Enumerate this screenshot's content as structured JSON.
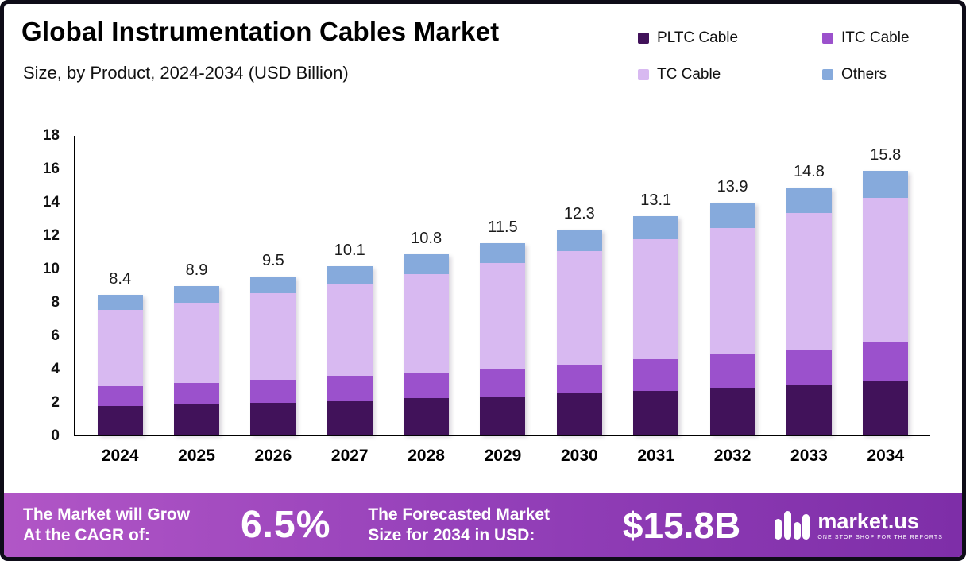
{
  "header": {
    "title": "Global Instrumentation Cables Market",
    "subtitle": "Size, by Product, 2024-2034 (USD Billion)"
  },
  "legend": [
    {
      "label": "PLTC Cable",
      "color": "#41125a"
    },
    {
      "label": "ITC Cable",
      "color": "#9b51cc"
    },
    {
      "label": "TC Cable",
      "color": "#d8b9f1"
    },
    {
      "label": "Others",
      "color": "#86aadc"
    }
  ],
  "chart_data": {
    "type": "bar",
    "stacked": true,
    "title": "Global Instrumentation Cables Market Size, by Product, 2024-2034 (USD Billion)",
    "unit": "USD Billion",
    "xlabel": "",
    "ylabel": "",
    "ylim": [
      0,
      18
    ],
    "yticks": [
      0,
      2,
      4,
      6,
      8,
      10,
      12,
      14,
      16,
      18
    ],
    "grid": false,
    "legend_position": "top-right",
    "categories": [
      "2024",
      "2025",
      "2026",
      "2027",
      "2028",
      "2029",
      "2030",
      "2031",
      "2032",
      "2033",
      "2034"
    ],
    "series": [
      {
        "name": "PLTC Cable",
        "color": "#41125a",
        "values": [
          1.7,
          1.8,
          1.9,
          2.0,
          2.2,
          2.3,
          2.5,
          2.6,
          2.8,
          3.0,
          3.2
        ]
      },
      {
        "name": "ITC Cable",
        "color": "#9b51cc",
        "values": [
          1.2,
          1.3,
          1.4,
          1.5,
          1.5,
          1.6,
          1.7,
          1.9,
          2.0,
          2.1,
          2.3
        ]
      },
      {
        "name": "TC Cable",
        "color": "#d8b9f1",
        "values": [
          4.6,
          4.8,
          5.2,
          5.5,
          5.9,
          6.4,
          6.8,
          7.2,
          7.6,
          8.2,
          8.7
        ]
      },
      {
        "name": "Others",
        "color": "#86aadc",
        "values": [
          0.9,
          1.0,
          1.0,
          1.1,
          1.2,
          1.2,
          1.3,
          1.4,
          1.5,
          1.5,
          1.6
        ]
      }
    ],
    "totals": [
      8.4,
      8.9,
      9.5,
      10.1,
      10.8,
      11.5,
      12.3,
      13.1,
      13.9,
      14.8,
      15.8
    ]
  },
  "footer": {
    "cagr_label_line1": "The Market will Grow",
    "cagr_label_line2": "At the CAGR of:",
    "cagr_value": "6.5%",
    "forecast_label_line1": "The Forecasted Market",
    "forecast_label_line2": "Size for 2034 in USD:",
    "forecast_value": "$15.8B",
    "brand": "market.us",
    "brand_tagline": "ONE STOP SHOP FOR THE REPORTS"
  }
}
